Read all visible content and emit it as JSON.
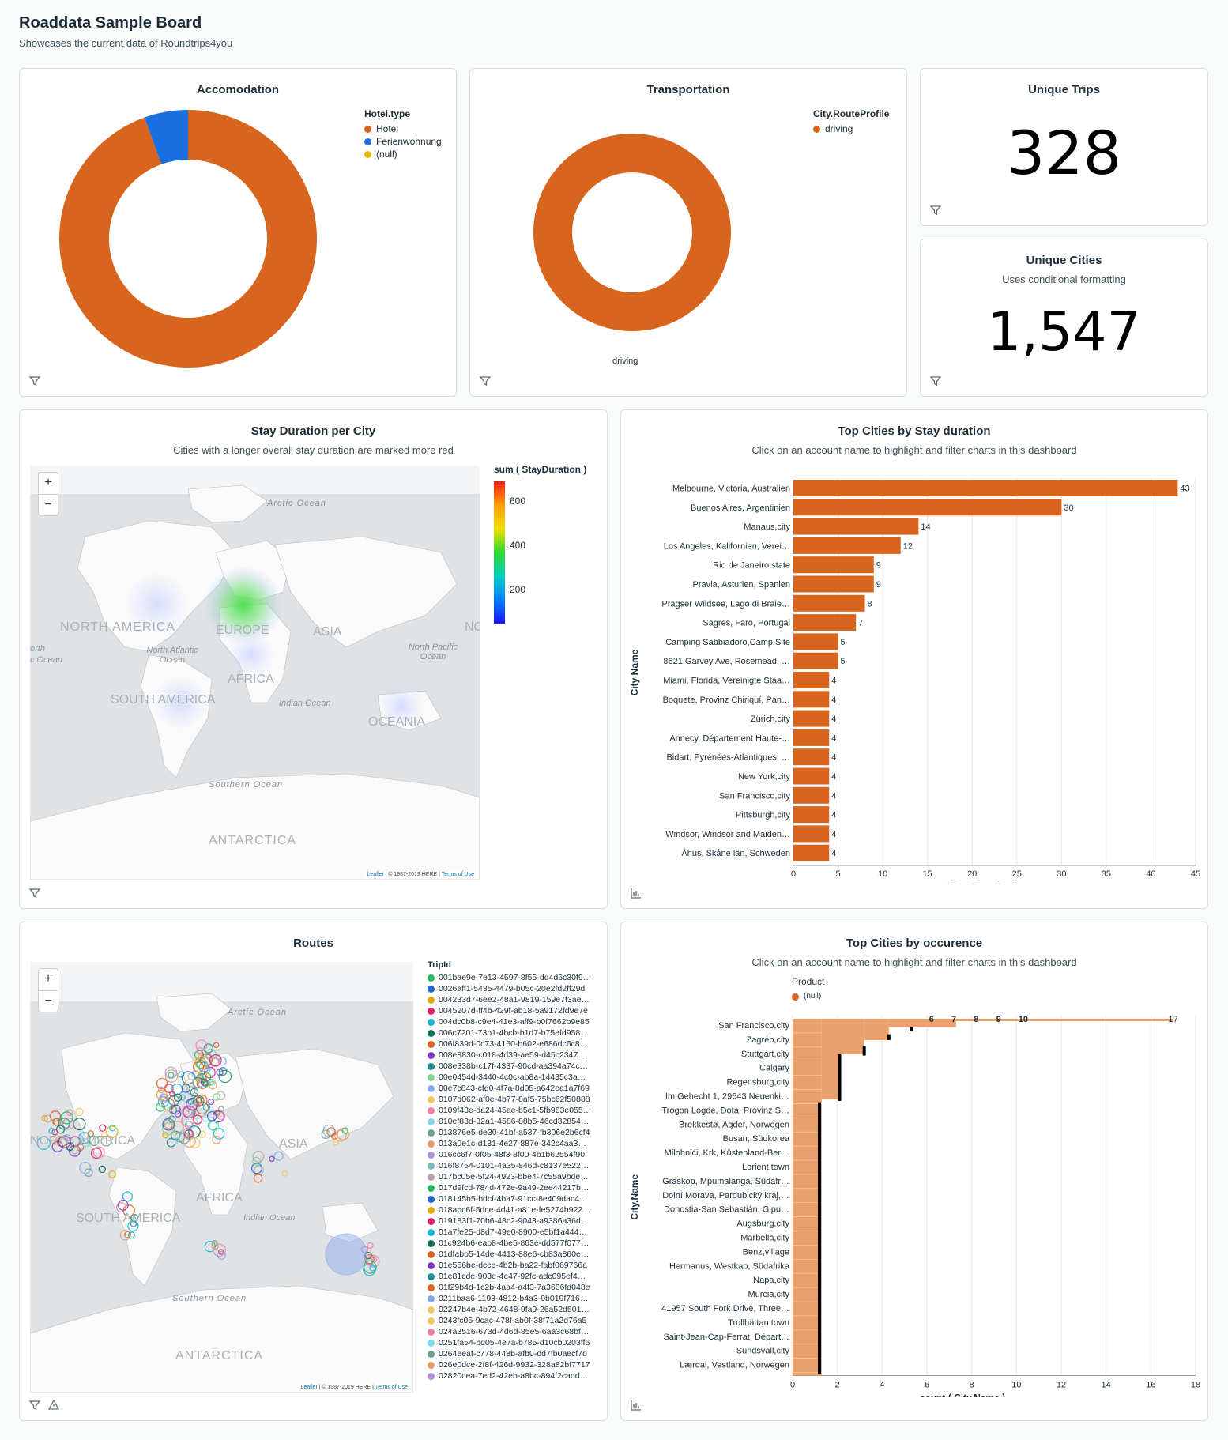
{
  "header": {
    "title": "Roaddata Sample Board",
    "subtitle": "Showcases the current data of Roundtrips4you"
  },
  "colors": {
    "orange": "#d8651e",
    "blue": "#1a6fe3",
    "yellow": "#e5b800",
    "bar_light": "#e8a06d"
  },
  "accomodation": {
    "title": "Accomodation",
    "legend_title": "Hotel.type",
    "legend": [
      {
        "label": "Hotel",
        "color": "#d8651e"
      },
      {
        "label": "Ferienwohnung",
        "color": "#1a6fe3"
      },
      {
        "label": "(null)",
        "color": "#e5b800"
      }
    ],
    "chart_data": {
      "type": "pie",
      "labels": [
        "Hotel",
        "Ferienwohnung",
        "(null)"
      ],
      "values": [
        94.5,
        5.5,
        0
      ]
    }
  },
  "transportation": {
    "title": "Transportation",
    "legend_title": "City.RouteProfile",
    "legend": [
      {
        "label": "driving",
        "color": "#d8651e"
      }
    ],
    "slice_label": "driving",
    "chart_data": {
      "type": "pie",
      "labels": [
        "driving"
      ],
      "values": [
        100
      ]
    }
  },
  "unique_trips": {
    "title": "Unique Trips",
    "value": "328"
  },
  "unique_cities": {
    "title": "Unique Cities",
    "subtitle": "Uses conditional formatting",
    "value": "1,547"
  },
  "stay_map": {
    "title": "Stay Duration per City",
    "subtitle": "Cities with a longer overall stay duration are marked more red",
    "legend_title": "sum ( StayDuration )",
    "legend_ticks": [
      "600",
      "400",
      "200"
    ],
    "labels": {
      "arctic": "Arctic Ocean",
      "na": "NORTH AMERICA",
      "europe": "EUROPE",
      "asia": "ASIA",
      "nat": "North Atlantic Ocean",
      "npac": "North Pacific Ocean",
      "africa": "AFRICA",
      "indian": "Indian Ocean",
      "sa": "SOUTH AMERICA",
      "oceania": "OCEANIA",
      "southern": "Southern Ocean",
      "antarctica": "ANTARCTICA",
      "nw": "orth",
      "nw2": "c Ocean",
      "ne": "NO"
    },
    "attr_a": "Leaflet",
    "attr_b": " | © 1987-2019 HERE | ",
    "attr_c": "Terms of Use",
    "zoom_in": "+",
    "zoom_out": "−"
  },
  "top_stay": {
    "title": "Top Cities by Stay duration",
    "subtitle": "Click on an account name to highlight and filter charts in this dashboard",
    "chart_data": {
      "type": "bar",
      "orientation": "horizontal",
      "xlabel": "sum ( StayDuration )",
      "ylabel": "City Name",
      "xlim": [
        0,
        45
      ],
      "xticks": [
        "0",
        "5",
        "10",
        "15",
        "20",
        "25",
        "30",
        "35",
        "40",
        "45"
      ],
      "categories": [
        "Melbourne, Victoria, Australien",
        "Buenos Aires, Argentinien",
        "Manaus,city",
        "Los Angeles, Kalifornien, Verei…",
        "Rio de Janeiro,state",
        "Pravia, Asturien, Spanien",
        "Pragser Wildsee, Lago di Braie…",
        "Sagres, Faro, Portugal",
        "Camping Sabbiadoro,Camp Site",
        "8621 Garvey Ave, Rosemead, …",
        "Miami, Florida, Vereinigte Staa…",
        "Boquete, Provinz Chiriquí, Pan…",
        "Zürich,city",
        "Annecy, Département Haute-…",
        "Bidart, Pyrénées-Atlantiques, …",
        "New York,city",
        "San Francisco,city",
        "Pittsburgh,city",
        "Windsor, Windsor and Maiden…",
        "Åhus, Skåne län, Schweden"
      ],
      "values": [
        43,
        30,
        14,
        12,
        9,
        9,
        8,
        7,
        5,
        5,
        4,
        4,
        4,
        4,
        4,
        4,
        4,
        4,
        4,
        4
      ]
    }
  },
  "routes": {
    "title": "Routes",
    "legend_title": "TripId",
    "trip_ids": [
      {
        "id": "001bae9e-7e13-4597-8f55-dd4d6c30f9…",
        "color": "#1fb85a"
      },
      {
        "id": "0026aff1-5435-4479-b05c-20e2fd2ff29d",
        "color": "#2566d6"
      },
      {
        "id": "004233d7-6ee2-48a1-9819-159e7f3ae…",
        "color": "#e0a800"
      },
      {
        "id": "0045207d-ff4b-429f-ab18-5a9172fd9e7e",
        "color": "#e3216f"
      },
      {
        "id": "004dc0b8-c9e4-41e3-aff9-b0f7662b9e85",
        "color": "#12b5d4"
      },
      {
        "id": "006c7201-73b1-4bcb-b1d7-b75efd958…",
        "color": "#0e6e56"
      },
      {
        "id": "006f839d-0c73-4160-b602-e686dc6c8…",
        "color": "#d8651e"
      },
      {
        "id": "008e8830-c018-4d39-ae59-d45c2347…",
        "color": "#7c3ac2"
      },
      {
        "id": "008e338b-c17f-4337-90cd-aa394a74c…",
        "color": "#1c8e8e"
      },
      {
        "id": "00e0454d-3440-4c0c-ab8a-14435c3a…",
        "color": "#7fd38f"
      },
      {
        "id": "00e7c843-cfd0-4f7a-8d05-a642ea1a7f69",
        "color": "#82a8ea"
      },
      {
        "id": "0107d062-af0e-4b77-8af5-75bc62f50888",
        "color": "#f1c85f"
      },
      {
        "id": "0109f43e-da24-45ae-b5c1-5fb983e055…",
        "color": "#f27ea6"
      },
      {
        "id": "010ef83d-32a1-4586-88b5-46cd32854…",
        "color": "#7fd6e8"
      },
      {
        "id": "013876e5-de30-41bf-a537-fb306e2b6cf4",
        "color": "#6f9e93"
      },
      {
        "id": "013a0e1c-d131-4e27-887e-342c4aa3…",
        "color": "#e89a6a"
      },
      {
        "id": "016cc6f7-0f05-48f3-8f00-4b1b62554f90",
        "color": "#b190db"
      },
      {
        "id": "016f8754-0101-4a35-846d-c8137e522…",
        "color": "#78b8b8"
      },
      {
        "id": "017bc05e-5f24-4923-bbe4-7c55a9bde…",
        "color": "#b7a3a3"
      },
      {
        "id": "017d9fcd-784d-472e-9a49-2ee44217b…",
        "color": "#1fb85a"
      },
      {
        "id": "018145b5-bdcf-4ba7-91cc-8e409dac4…",
        "color": "#2566d6"
      },
      {
        "id": "018abc6f-5dce-4d41-a81e-fe5274b922…",
        "color": "#e0a800"
      },
      {
        "id": "019183f1-70b6-48c2-9043-a9386a36d…",
        "color": "#e3216f"
      },
      {
        "id": "01a7fe25-d8d7-49e0-8900-e5bf1a444…",
        "color": "#12b5d4"
      },
      {
        "id": "01c924b6-eab8-4be5-863e-dd577f077…",
        "color": "#0e6e56"
      },
      {
        "id": "01dfabb5-14de-4413-88e6-cb83a860e…",
        "color": "#d8651e"
      },
      {
        "id": "01e556be-dccb-4b2b-ba22-fabf069766a",
        "color": "#7c3ac2"
      },
      {
        "id": "01e81cde-903e-4e47-92fc-adc095ef4…",
        "color": "#1c8e8e"
      },
      {
        "id": "01f29b4d-1c2b-4aa4-a4f3-7a3606fd048e",
        "color": "#d8651e"
      },
      {
        "id": "0211baa6-1193-4812-b4a3-9b019f716…",
        "color": "#82a8ea"
      },
      {
        "id": "02247b4e-4b72-4648-9fa9-26a52d501…",
        "color": "#f1c85f"
      },
      {
        "id": "0243fc05-9cac-478f-ab0f-38f71a2d76a5",
        "color": "#f1c85f"
      },
      {
        "id": "024a3516-673d-4d6d-85e5-6aa3c68bf…",
        "color": "#f27ea6"
      },
      {
        "id": "0251fa54-bd05-4e7a-b785-d10cb0203ff6",
        "color": "#7fd6e8"
      },
      {
        "id": "0264eeaf-c778-448b-afb0-dd7fb0aecf7d",
        "color": "#6f9e93"
      },
      {
        "id": "026e0dce-2f8f-426d-9932-328a82bf7717",
        "color": "#e89a6a"
      },
      {
        "id": "02820cea-7ed2-42eb-a8bc-894f2cadd…",
        "color": "#b190db"
      }
    ]
  },
  "top_occ": {
    "title": "Top Cities by occurence",
    "subtitle": "Click on an account name to highlight and filter charts in this dashboard",
    "legend_title": "Product",
    "legend": [
      {
        "label": "(null)",
        "color": "#d8651e"
      }
    ],
    "chart_data": {
      "type": "bar",
      "orientation": "horizontal",
      "xlabel": "count ( City.Name )",
      "ylabel": "City.Name",
      "xlim": [
        0,
        18
      ],
      "xticks": [
        "0",
        "2",
        "4",
        "6",
        "8",
        "10",
        "12",
        "14",
        "16",
        "18"
      ],
      "categories": [
        "San Francisco,city",
        "Zagreb,city",
        "Stuttgart,city",
        "Calgary",
        "Regensburg,city",
        "Im Gehecht 1, 29643 Neuenki…",
        "Trogon Logde, Dota, Provinz S…",
        "Brekkestø, Agder, Norwegen",
        "Busan, Südkorea",
        "Milohnići, Krk, Küstenland-Ber…",
        "Lorient,town",
        "Graskop, Mpumalanga, Südafr…",
        "Dolní Morava, Pardubický kraj,…",
        "Donostia-San Sebastián, Gipu…",
        "Augsburg,city",
        "Marbella,city",
        "Benz,village",
        "Hermanus, Westkap, Südafrika",
        "Napa,city",
        "Murcia,city",
        "41957 South Fork Drive, Three…",
        "Trollhättan,town",
        "Saint-Jean-Cap-Ferrat, Départ…",
        "Sundsvall,city",
        "Lærdal, Vestland, Norwegen"
      ],
      "annotations": [
        "6",
        "7",
        "8",
        "9",
        "10",
        "17"
      ]
    }
  }
}
